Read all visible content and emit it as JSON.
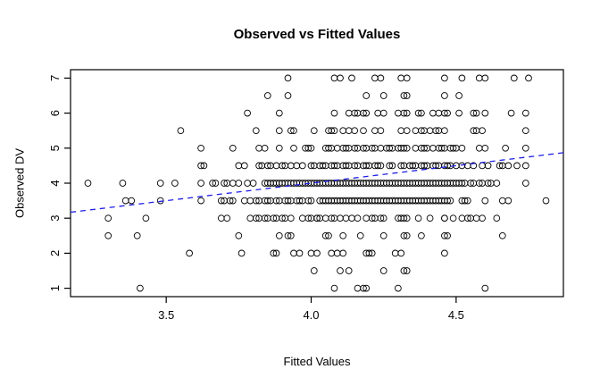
{
  "chart_data": {
    "type": "scatter",
    "title": "Observed vs Fitted Values",
    "xlabel": "Fitted Values",
    "ylabel": "Observed DV",
    "xlim": [
      3.17,
      4.87
    ],
    "ylim": [
      0.76,
      7.24
    ],
    "x_ticks": [
      3.5,
      4.0,
      4.5
    ],
    "x_tick_labels": [
      "3.5",
      "4.0",
      "4.5"
    ],
    "y_ticks": [
      1,
      2,
      3,
      4,
      5,
      6,
      7
    ],
    "y_tick_labels": [
      "1",
      "2",
      "3",
      "4",
      "5",
      "6",
      "7"
    ],
    "grid": false,
    "point_style": {
      "shape": "open-circle",
      "color": "#000000",
      "radius": 3.4
    },
    "reference_line": {
      "type": "identity",
      "intercept": 0,
      "slope": 1,
      "color": "#1E1EE6",
      "style": "dashed"
    },
    "rows": [
      {
        "y": 7,
        "x": [
          3.92,
          4.08,
          4.1,
          4.14,
          4.22,
          4.24,
          4.31,
          4.33,
          4.46,
          4.52,
          4.58,
          4.6,
          4.7,
          4.75
        ]
      },
      {
        "y": 6.5,
        "x": [
          3.85,
          3.92,
          4.19,
          4.25,
          4.32,
          4.33,
          4.46,
          4.51
        ]
      },
      {
        "y": 6,
        "x": [
          3.78,
          3.89,
          4.08,
          4.13,
          4.15,
          4.16,
          4.18,
          4.19,
          4.23,
          4.25,
          4.3,
          4.32,
          4.33,
          4.37,
          4.38,
          4.42,
          4.44,
          4.46,
          4.47,
          4.51,
          4.56,
          4.57,
          4.6,
          4.69,
          4.74
        ]
      },
      {
        "y": 5.5,
        "x": [
          3.55,
          3.81,
          3.89,
          3.93,
          3.94,
          4.01,
          4.06,
          4.07,
          4.08,
          4.11,
          4.13,
          4.15,
          4.18,
          4.22,
          4.24,
          4.31,
          4.33,
          4.36,
          4.38,
          4.39,
          4.41,
          4.43,
          4.44,
          4.46,
          4.56,
          4.57,
          4.59,
          4.74
        ]
      },
      {
        "y": 5,
        "x": [
          3.62,
          3.73,
          3.82,
          3.84,
          3.89,
          3.94,
          3.98,
          3.99,
          4.0,
          4.05,
          4.06,
          4.07,
          4.09,
          4.11,
          4.12,
          4.13,
          4.15,
          4.16,
          4.18,
          4.19,
          4.21,
          4.22,
          4.24,
          4.26,
          4.27,
          4.28,
          4.3,
          4.31,
          4.32,
          4.33,
          4.36,
          4.38,
          4.39,
          4.4,
          4.42,
          4.44,
          4.45,
          4.46,
          4.48,
          4.49,
          4.5,
          4.52,
          4.58,
          4.6,
          4.67,
          4.74
        ]
      },
      {
        "y": 4.5,
        "x": [
          3.62,
          3.63,
          3.75,
          3.77,
          3.82,
          3.83,
          3.85,
          3.86,
          3.88,
          3.9,
          3.91,
          3.93,
          3.95,
          3.97,
          4.0,
          4.01,
          4.03,
          4.04,
          4.05,
          4.07,
          4.08,
          4.09,
          4.11,
          4.12,
          4.13,
          4.15,
          4.16,
          4.18,
          4.19,
          4.2,
          4.22,
          4.23,
          4.24,
          4.27,
          4.28,
          4.31,
          4.32,
          4.34,
          4.35,
          4.36,
          4.38,
          4.39,
          4.4,
          4.42,
          4.43,
          4.44,
          4.46,
          4.47,
          4.48,
          4.5,
          4.52,
          4.54,
          4.56,
          4.59,
          4.61,
          4.65,
          4.66,
          4.68,
          4.71,
          4.74
        ]
      },
      {
        "y": 4,
        "x": [
          3.23,
          3.35,
          3.48,
          3.53,
          3.62,
          3.66,
          3.67,
          3.7,
          3.71,
          3.73,
          3.75,
          3.78,
          3.8,
          3.84,
          3.85,
          3.86,
          3.87,
          3.88,
          3.89,
          3.9,
          3.91,
          3.92,
          3.93,
          3.94,
          3.95,
          3.96,
          3.97,
          3.98,
          3.99,
          4.0,
          4.01,
          4.02,
          4.03,
          4.04,
          4.05,
          4.06,
          4.07,
          4.08,
          4.09,
          4.1,
          4.11,
          4.12,
          4.13,
          4.14,
          4.15,
          4.16,
          4.17,
          4.18,
          4.19,
          4.2,
          4.21,
          4.22,
          4.23,
          4.24,
          4.25,
          4.26,
          4.27,
          4.28,
          4.29,
          4.3,
          4.31,
          4.32,
          4.33,
          4.34,
          4.35,
          4.36,
          4.37,
          4.38,
          4.39,
          4.4,
          4.41,
          4.42,
          4.43,
          4.44,
          4.45,
          4.46,
          4.47,
          4.48,
          4.49,
          4.5,
          4.51,
          4.52,
          4.53,
          4.55,
          4.56,
          4.58,
          4.59,
          4.61,
          4.62,
          4.64,
          4.74
        ]
      },
      {
        "y": 3.5,
        "x": [
          3.36,
          3.38,
          3.48,
          3.62,
          3.69,
          3.7,
          3.72,
          3.73,
          3.77,
          3.79,
          3.81,
          3.82,
          3.84,
          3.85,
          3.86,
          3.88,
          3.89,
          3.91,
          3.92,
          3.93,
          3.95,
          3.96,
          3.97,
          3.99,
          4.0,
          4.03,
          4.04,
          4.05,
          4.06,
          4.07,
          4.08,
          4.09,
          4.1,
          4.11,
          4.12,
          4.13,
          4.14,
          4.15,
          4.16,
          4.17,
          4.18,
          4.19,
          4.2,
          4.21,
          4.22,
          4.23,
          4.24,
          4.25,
          4.26,
          4.27,
          4.28,
          4.29,
          4.3,
          4.31,
          4.32,
          4.33,
          4.34,
          4.35,
          4.36,
          4.37,
          4.38,
          4.39,
          4.4,
          4.41,
          4.42,
          4.43,
          4.44,
          4.45,
          4.46,
          4.47,
          4.48,
          4.52,
          4.53,
          4.54,
          4.6,
          4.66,
          4.68,
          4.81
        ]
      },
      {
        "y": 3,
        "x": [
          3.3,
          3.43,
          3.69,
          3.71,
          3.79,
          3.81,
          3.82,
          3.84,
          3.85,
          3.87,
          3.88,
          3.9,
          3.91,
          3.93,
          3.97,
          3.99,
          4.0,
          4.02,
          4.02,
          4.03,
          4.05,
          4.07,
          4.08,
          4.1,
          4.12,
          4.14,
          4.16,
          4.19,
          4.21,
          4.22,
          4.24,
          4.25,
          4.3,
          4.31,
          4.32,
          4.33,
          4.37,
          4.41,
          4.46,
          4.46,
          4.49,
          4.52,
          4.54,
          4.55,
          4.57,
          4.59,
          4.64
        ]
      },
      {
        "y": 2.5,
        "x": [
          3.3,
          3.4,
          3.75,
          3.89,
          3.92,
          3.93,
          4.05,
          4.06,
          4.11,
          4.17,
          4.25,
          4.32,
          4.33,
          4.38,
          4.46,
          4.47,
          4.66
        ]
      },
      {
        "y": 2,
        "x": [
          3.58,
          3.76,
          3.87,
          3.88,
          3.94,
          3.96,
          4.0,
          4.02,
          4.07,
          4.09,
          4.11,
          4.19,
          4.2,
          4.21,
          4.29,
          4.31,
          4.46
        ]
      },
      {
        "y": 1.5,
        "x": [
          4.01,
          4.1,
          4.13,
          4.25,
          4.32,
          4.33
        ]
      },
      {
        "y": 1,
        "x": [
          3.41,
          4.08,
          4.16,
          4.18,
          4.19,
          4.3,
          4.6
        ]
      }
    ]
  }
}
